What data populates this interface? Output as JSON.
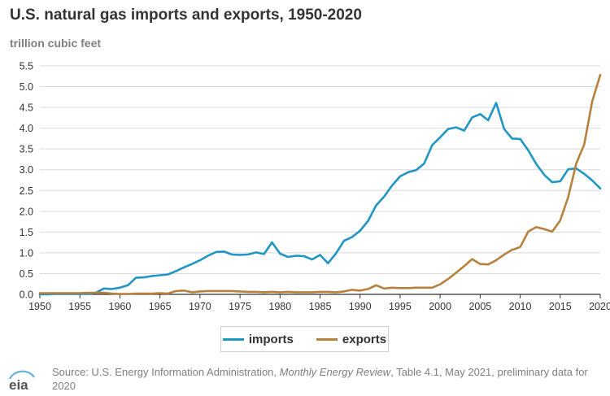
{
  "title": "U.S. natural gas imports and exports, 1950-2020",
  "unit_label": "trillion cubic feet",
  "legend": {
    "imports": "imports",
    "exports": "exports"
  },
  "colors": {
    "imports": "#1f96c6",
    "exports": "#b8803d",
    "grid": "#d9d9d9",
    "axis": "#333333"
  },
  "source": {
    "prefix": "Source: U.S. Energy Information Administration, ",
    "publication": "Monthly Energy Review",
    "suffix": ", Table 4.1, May 2021, preliminary data for 2020"
  },
  "logo_text": "eia",
  "chart_data": {
    "type": "line",
    "title": "U.S. natural gas imports and exports, 1950-2020",
    "ylabel": "trillion cubic feet",
    "xlabel": "",
    "xlim": [
      1950,
      2020
    ],
    "ylim": [
      0,
      5.5
    ],
    "xticks": [
      "1950",
      "1955",
      "1960",
      "1965",
      "1970",
      "1975",
      "1980",
      "1985",
      "1990",
      "1995",
      "2000",
      "2005",
      "2010",
      "2015",
      "2020"
    ],
    "yticks": [
      "0.0",
      "0.5",
      "1.0",
      "1.5",
      "2.0",
      "2.5",
      "3.0",
      "3.5",
      "4.0",
      "4.5",
      "5.0",
      "5.5"
    ],
    "grid": true,
    "legend_position": "bottom",
    "x": [
      1950,
      1951,
      1952,
      1953,
      1954,
      1955,
      1956,
      1957,
      1958,
      1959,
      1960,
      1961,
      1962,
      1963,
      1964,
      1965,
      1966,
      1967,
      1968,
      1969,
      1970,
      1971,
      1972,
      1973,
      1974,
      1975,
      1976,
      1977,
      1978,
      1979,
      1980,
      1981,
      1982,
      1983,
      1984,
      1985,
      1986,
      1987,
      1988,
      1989,
      1990,
      1991,
      1992,
      1993,
      1994,
      1995,
      1996,
      1997,
      1998,
      1999,
      2000,
      2001,
      2002,
      2003,
      2004,
      2005,
      2006,
      2007,
      2008,
      2009,
      2010,
      2011,
      2012,
      2013,
      2014,
      2015,
      2016,
      2017,
      2018,
      2019,
      2020
    ],
    "series": [
      {
        "name": "imports",
        "values": [
          0.0,
          0.0,
          0.01,
          0.01,
          0.01,
          0.01,
          0.01,
          0.04,
          0.14,
          0.13,
          0.16,
          0.22,
          0.4,
          0.41,
          0.44,
          0.46,
          0.48,
          0.56,
          0.65,
          0.73,
          0.82,
          0.93,
          1.02,
          1.03,
          0.96,
          0.95,
          0.96,
          1.01,
          0.97,
          1.25,
          0.98,
          0.9,
          0.93,
          0.92,
          0.84,
          0.95,
          0.75,
          0.99,
          1.29,
          1.38,
          1.53,
          1.77,
          2.14,
          2.35,
          2.62,
          2.84,
          2.94,
          2.99,
          3.15,
          3.59,
          3.78,
          3.98,
          4.02,
          3.94,
          4.26,
          4.34,
          4.19,
          4.61,
          3.98,
          3.75,
          3.74,
          3.47,
          3.14,
          2.88,
          2.7,
          2.72,
          3.01,
          3.03,
          2.9,
          2.74,
          2.55
        ]
      },
      {
        "name": "exports",
        "values": [
          0.03,
          0.03,
          0.03,
          0.03,
          0.03,
          0.03,
          0.04,
          0.04,
          0.04,
          0.02,
          0.01,
          0.01,
          0.02,
          0.02,
          0.02,
          0.03,
          0.02,
          0.08,
          0.09,
          0.05,
          0.07,
          0.08,
          0.08,
          0.08,
          0.08,
          0.07,
          0.06,
          0.06,
          0.05,
          0.06,
          0.05,
          0.06,
          0.05,
          0.05,
          0.05,
          0.06,
          0.06,
          0.05,
          0.07,
          0.11,
          0.09,
          0.13,
          0.22,
          0.14,
          0.16,
          0.15,
          0.15,
          0.16,
          0.16,
          0.16,
          0.24,
          0.37,
          0.52,
          0.68,
          0.85,
          0.73,
          0.72,
          0.82,
          0.96,
          1.07,
          1.14,
          1.51,
          1.62,
          1.57,
          1.51,
          1.78,
          2.34,
          3.15,
          3.61,
          4.65,
          5.28
        ]
      }
    ]
  }
}
